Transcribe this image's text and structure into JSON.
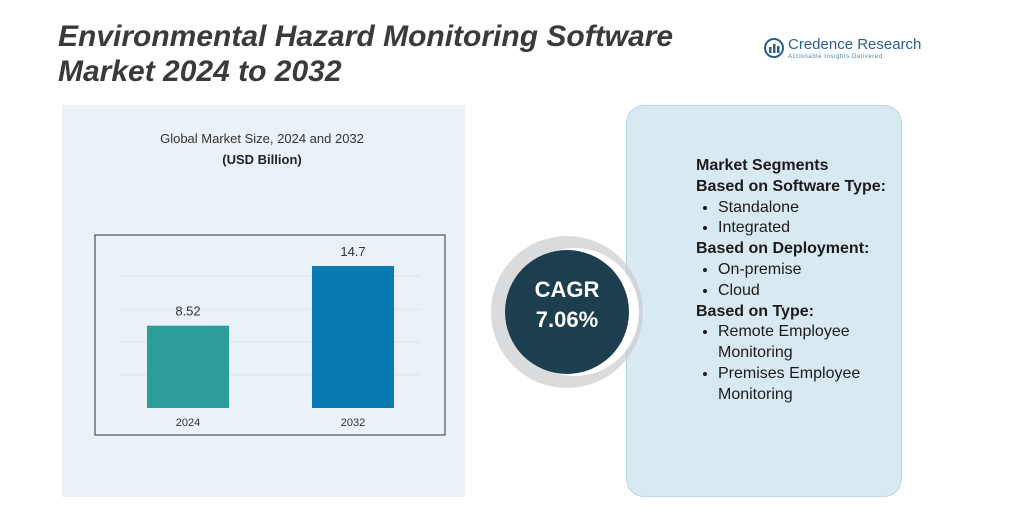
{
  "header": {
    "title_line1": "Environmental Hazard Monitoring Software",
    "title_line2": "Market 2024 to 2032",
    "brand": "Credence Research",
    "tagline": "Actionable Insights Delivered"
  },
  "chart_data": {
    "type": "bar",
    "title": "Global Market Size, 2024 and 2032",
    "subtitle": "(USD Billion)",
    "categories": [
      "2024",
      "2032"
    ],
    "values": [
      8.52,
      14.7
    ],
    "colors": [
      "#2b9e9a",
      "#0a7bb2"
    ],
    "grid": true
  },
  "cagr": {
    "label": "CAGR",
    "value": "7.06%"
  },
  "segments": {
    "heading": "Market Segments",
    "groups": [
      {
        "title": "Based on Software Type:",
        "items": [
          "Standalone",
          "Integrated"
        ]
      },
      {
        "title": "Based on Deployment:",
        "items": [
          "On-premise",
          "Cloud"
        ]
      },
      {
        "title": "Based on Type:",
        "items": [
          "Remote Employee Monitoring",
          "Premises Employee Monitoring"
        ]
      }
    ]
  }
}
